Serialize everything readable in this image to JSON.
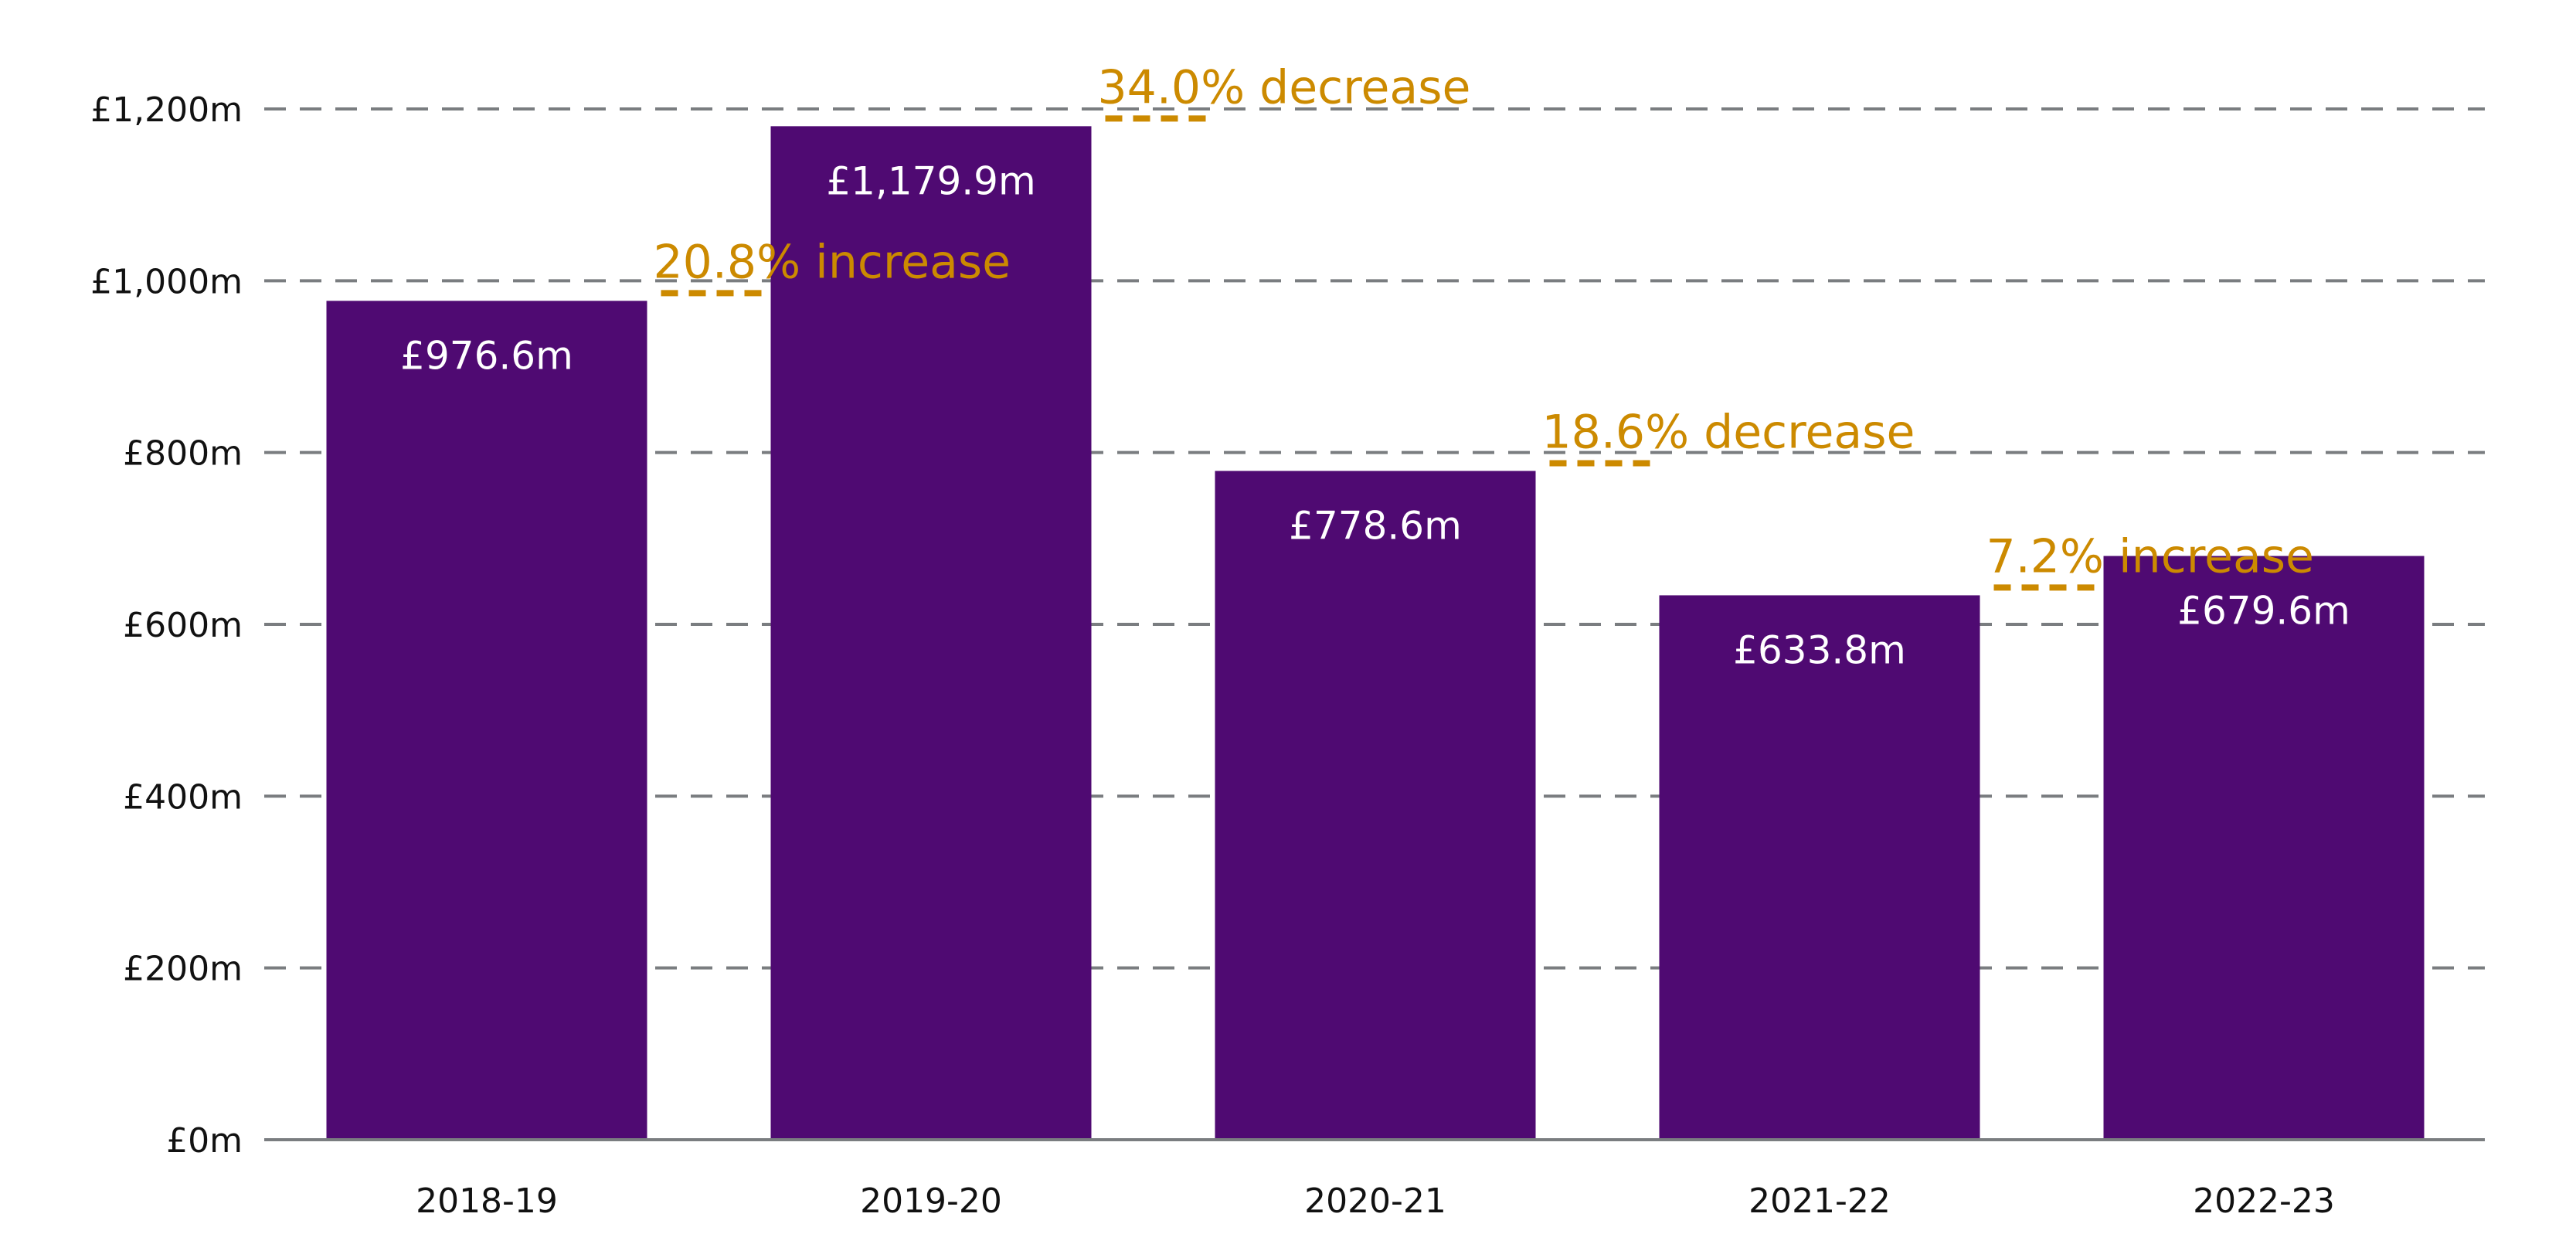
{
  "chart_data": {
    "type": "bar",
    "title": "",
    "xlabel": "",
    "ylabel": "",
    "categories": [
      "2018-19",
      "2019-20",
      "2020-21",
      "2021-22",
      "2022-23"
    ],
    "values": [
      976.6,
      1179.9,
      778.6,
      633.8,
      679.6
    ],
    "data_labels": [
      "£976.6m",
      "£1,179.9m",
      "£778.6m",
      "£633.8m",
      "£679.6m"
    ],
    "ylim": [
      0,
      1200
    ],
    "yticks": [
      0,
      200,
      400,
      600,
      800,
      1000,
      1200
    ],
    "ytick_labels": [
      "£0m",
      "£200m",
      "£400m",
      "£600m",
      "£800m",
      "£1,000m",
      "£1,200m"
    ],
    "grid": true,
    "annotations": [
      {
        "between": [
          "2018-19",
          "2019-20"
        ],
        "text": "20.8% increase"
      },
      {
        "between": [
          "2019-20",
          "2020-21"
        ],
        "text": "34.0% decrease"
      },
      {
        "between": [
          "2020-21",
          "2021-22"
        ],
        "text": "18.6% decrease"
      },
      {
        "between": [
          "2021-22",
          "2022-23"
        ],
        "text": "7.2% increase"
      }
    ],
    "colors": {
      "bar": "#4f0a72",
      "annotation": "#cc8a00",
      "grid": "#7a7d80",
      "bar_label": "#ffffff",
      "axis_text": "#111111"
    }
  }
}
